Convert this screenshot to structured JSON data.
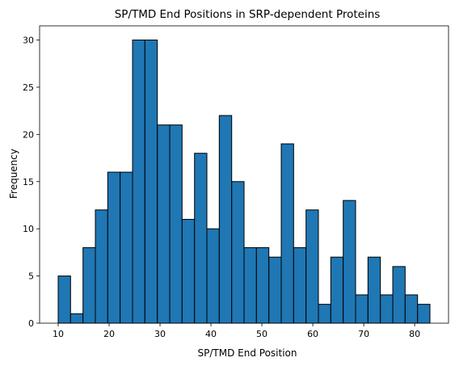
{
  "chart_data": {
    "type": "bar",
    "title": "SP/TMD End Positions in SRP-dependent Proteins",
    "xlabel": "SP/TMD End Position",
    "ylabel": "Frequency",
    "bin_edges": [
      10,
      12.43,
      14.87,
      17.3,
      19.73,
      22.17,
      24.6,
      27.03,
      29.47,
      31.9,
      34.33,
      36.77,
      39.2,
      41.63,
      44.07,
      46.5,
      48.93,
      51.37,
      53.8,
      56.23,
      58.67,
      61.1,
      63.53,
      65.97,
      68.4,
      70.83,
      73.27,
      75.7,
      78.13,
      80.57,
      83
    ],
    "values": [
      5,
      1,
      8,
      12,
      16,
      16,
      30,
      30,
      21,
      21,
      11,
      18,
      10,
      22,
      15,
      8,
      8,
      7,
      19,
      8,
      12,
      2,
      7,
      13,
      3,
      7,
      3,
      6,
      3,
      2
    ],
    "xlim": [
      6.35,
      86.65
    ],
    "ylim": [
      0,
      31.5
    ],
    "xticks": [
      10,
      20,
      30,
      40,
      50,
      60,
      70,
      80
    ],
    "yticks": [
      0,
      5,
      10,
      15,
      20,
      25,
      30
    ],
    "bar_color": "#1f77b4",
    "edge_color": "#000000",
    "grid": false
  }
}
